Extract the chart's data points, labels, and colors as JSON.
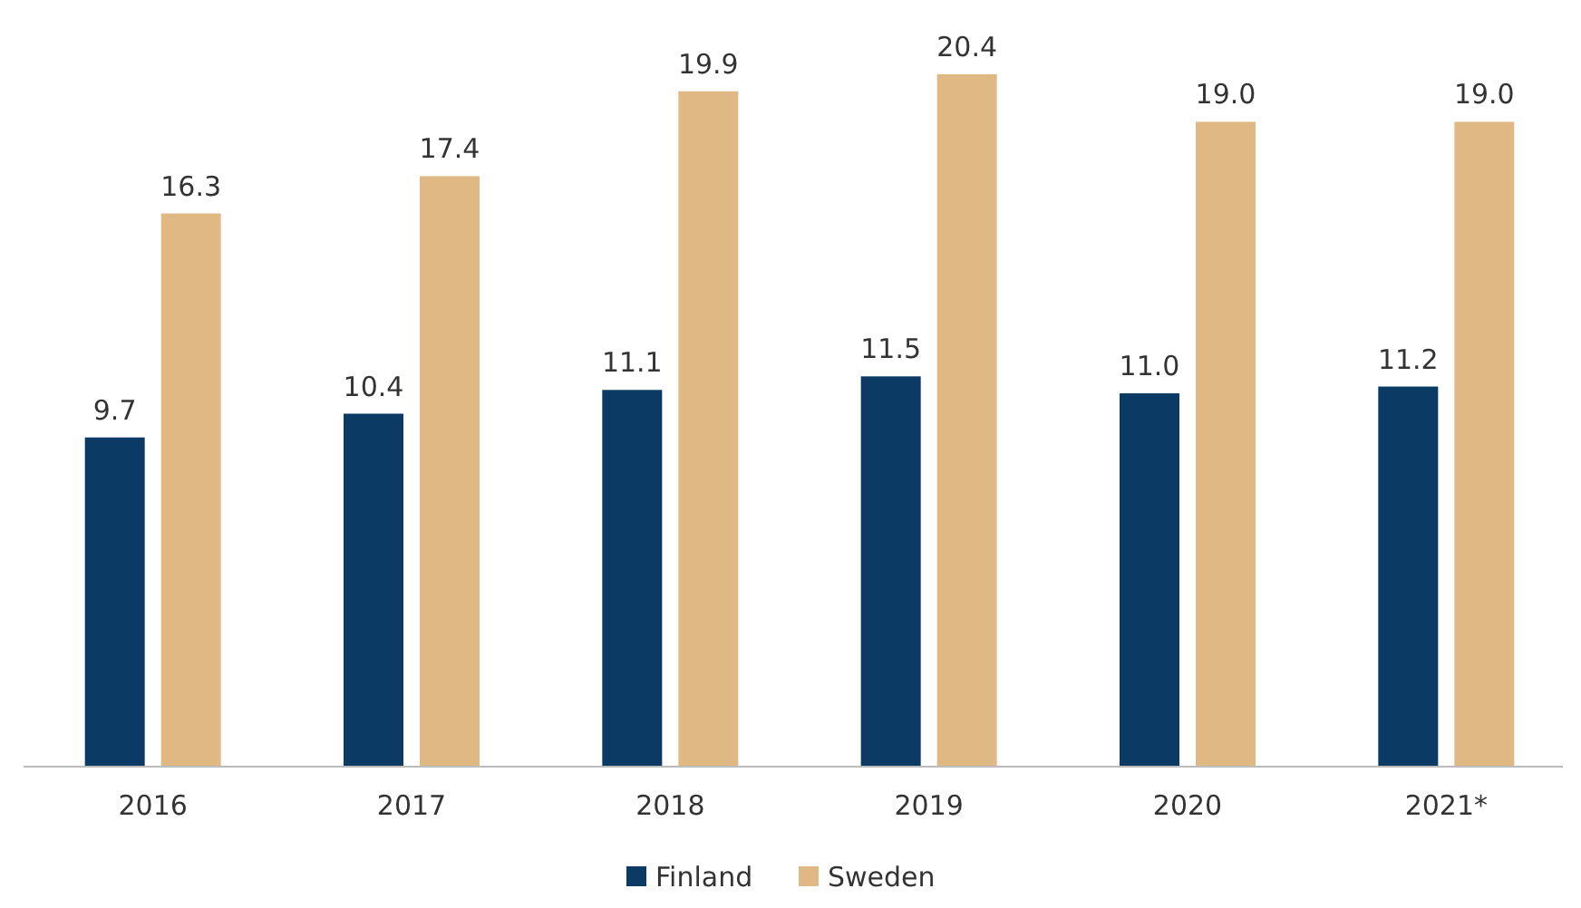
{
  "chart_data": {
    "type": "bar",
    "categories": [
      "2016",
      "2017",
      "2018",
      "2019",
      "2020",
      "2021*"
    ],
    "series": [
      {
        "name": "Finland",
        "color": "#0b3a64",
        "values": [
          9.7,
          10.4,
          11.1,
          11.5,
          11.0,
          11.2
        ],
        "value_labels": [
          "9.7",
          "10.4",
          "11.1",
          "11.5",
          "11.0",
          "11.2"
        ]
      },
      {
        "name": "Sweden",
        "color": "#e0b884",
        "values": [
          16.3,
          17.4,
          19.9,
          20.4,
          19.0,
          19.0
        ],
        "value_labels": [
          "16.3",
          "17.4",
          "19.9",
          "20.4",
          "19.0",
          "19.0"
        ]
      }
    ],
    "legend": "bottom"
  }
}
